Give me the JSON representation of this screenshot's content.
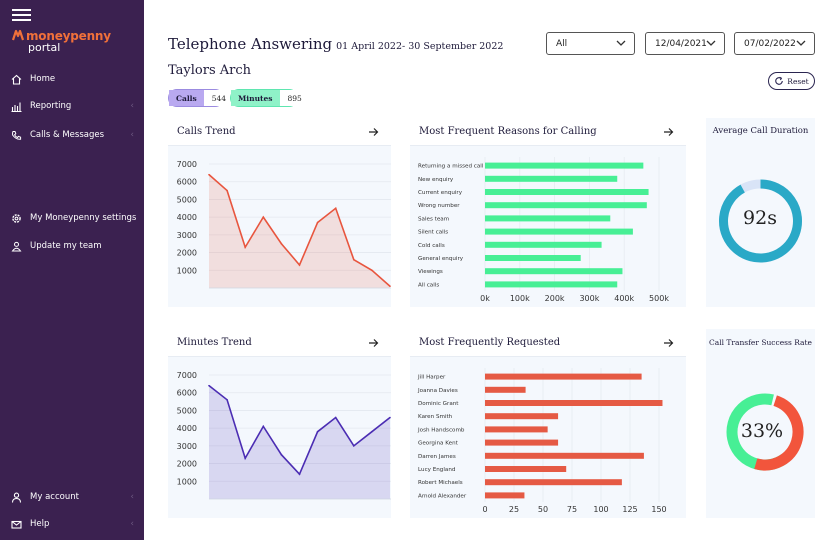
{
  "sidebar": {
    "logo_text": "moneypenny",
    "logo_sub": "portal",
    "items": [
      {
        "label": "Home",
        "icon": "home-icon"
      },
      {
        "label": "Reporting",
        "icon": "bar-chart-icon"
      },
      {
        "label": "Calls & Messages",
        "icon": "phone-icon"
      },
      {
        "label": "My Moneypenny settings",
        "icon": "gear-icon"
      },
      {
        "label": "Update my team",
        "icon": "team-icon"
      },
      {
        "label": "My account",
        "icon": "user-icon"
      },
      {
        "label": "Help",
        "icon": "mail-icon"
      }
    ]
  },
  "header": {
    "title": "Telephone Answering",
    "date_range": "01 April 2022- 30 September 2022",
    "site": "Taylors Arch",
    "calls_label": "Calls",
    "calls_value": "544",
    "minutes_label": "Minutes",
    "minutes_value": "895",
    "filter_value": "All",
    "date_from": "12/04/2021",
    "date_to": "07/02/2022",
    "reset_label": "Reset"
  },
  "colors": {
    "sidebar": "#3b2150",
    "calls_line": "#e8553e",
    "minutes_line": "#4b2db3",
    "reasons_bar": "#47ef95",
    "requested_bar": "#e55a44",
    "duration_ring": "#2aa9c7",
    "transfer_success": "#47ef95",
    "transfer_fail": "#f2553c"
  },
  "chart_data": [
    {
      "id": "calls_trend",
      "type": "area",
      "title": "Calls Trend",
      "yticks": [
        1000,
        2000,
        3000,
        4000,
        5000,
        6000,
        7000
      ],
      "ylim": [
        0,
        7000
      ],
      "values": [
        6400,
        5500,
        2300,
        4000,
        2500,
        1300,
        3700,
        4500,
        1600,
        1000,
        100
      ]
    },
    {
      "id": "minutes_trend",
      "type": "area",
      "title": "Minutes Trend",
      "yticks": [
        1000,
        2000,
        3000,
        4000,
        5000,
        6000,
        7000
      ],
      "ylim": [
        0,
        7000
      ],
      "values": [
        6400,
        5600,
        2300,
        4100,
        2500,
        1400,
        3800,
        4600,
        3000,
        3800,
        4600
      ]
    },
    {
      "id": "reasons",
      "type": "bar",
      "title": "Most Frequent Reasons for Calling",
      "categories": [
        "Returning a missed call",
        "New enquiry",
        "Current enquiry",
        "Wrong number",
        "Sales team",
        "Silent calls",
        "Cold calls",
        "General enquiry",
        "Viewings",
        "All calls"
      ],
      "values": [
        455000,
        380000,
        470000,
        465000,
        360000,
        425000,
        335000,
        275000,
        395000,
        380000
      ],
      "xticks": [
        "0k",
        "100k",
        "200k",
        "300k",
        "400k",
        "500k"
      ],
      "xlim": [
        0,
        500000
      ]
    },
    {
      "id": "requested",
      "type": "bar",
      "title": "Most Frequently Requested",
      "categories": [
        "Jill Harper",
        "Joanna Davies",
        "Dominic Grant",
        "Karen Smith",
        "Josh Handscomb",
        "Georgina Kent",
        "Darren James",
        "Lucy England",
        "Robert Michaels",
        "Arnold Alexander"
      ],
      "values": [
        135,
        35,
        153,
        63,
        54,
        63,
        137,
        70,
        118,
        34
      ],
      "xticks": [
        "0",
        "25",
        "50",
        "75",
        "100",
        "125",
        "150"
      ],
      "xlim": [
        0,
        150
      ]
    },
    {
      "id": "avg_duration",
      "type": "pie",
      "title": "Average Call Duration",
      "display": "92s",
      "fraction": 0.92
    },
    {
      "id": "transfer_rate",
      "type": "pie",
      "title": "Call Transfer Success Rate",
      "display": "33%",
      "success_fraction": 0.33
    }
  ]
}
